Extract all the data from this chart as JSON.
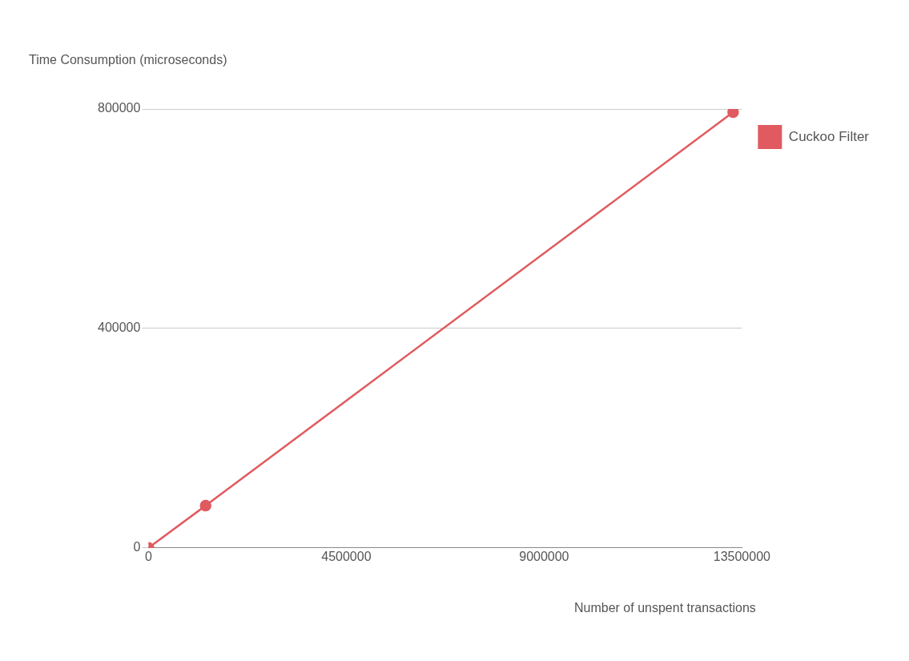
{
  "chart_data": {
    "type": "line",
    "xlabel": "Number of unspent transactions",
    "ylabel": "Time Consumption (microseconds)",
    "x": [
      0,
      1300000,
      13300000
    ],
    "series": [
      {
        "name": "Cuckoo Filter",
        "color": "#e05a5f",
        "values": [
          0,
          77000,
          794000
        ]
      }
    ],
    "xlim": [
      0,
      13500000
    ],
    "xticks": [
      0,
      4500000,
      9000000,
      13500000
    ],
    "ylim": [
      0,
      800000
    ],
    "yticks": [
      0,
      400000,
      800000
    ],
    "grid": "y",
    "legend": "right",
    "marker": "circle",
    "line_style": "solid"
  }
}
